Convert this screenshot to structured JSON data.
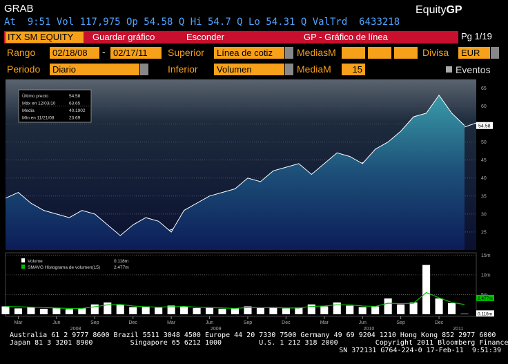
{
  "header": {
    "ticker": "GRAB",
    "brand": "Equity",
    "brand_bold": "GP",
    "quote": "At  9:51 Vol 117,975 Op 54.58 Q Hi 54.7 Q Lo 54.31 Q ValTrd  6433218"
  },
  "toolbar": {
    "security": "ITX SM EQUITY",
    "save": "Guardar gráfico",
    "hide": "Esconder",
    "title": "GP - Gráfico de línea",
    "page": "Pg 1/19"
  },
  "form": {
    "range_label": "Rango",
    "start": "02/18/08",
    "dash": "-",
    "end": "02/17/11",
    "upper_label": "Superior",
    "upper": "Línea de cotiz",
    "ma_upper_label": "MediasM",
    "currency_label": "Divisa",
    "currency": "EUR",
    "period_label": "Periodo",
    "period": "Diario",
    "lower_label": "Inferior",
    "lower": "Volumen",
    "ma_lower_label": "MediaM",
    "ma_lower": "15",
    "events": "Eventos"
  },
  "chart_data": [
    {
      "type": "area",
      "color": "#ffffff",
      "values": [
        34.4,
        36,
        33,
        31,
        30,
        29,
        31,
        30,
        27,
        24,
        27,
        29,
        28,
        25,
        31,
        33,
        35,
        36,
        37,
        40,
        39,
        42,
        43,
        44,
        41,
        44,
        47,
        46,
        44,
        48,
        50,
        53,
        57,
        58,
        63,
        58,
        54.58
      ],
      "ylim": [
        20,
        67
      ],
      "yticks": [
        25,
        30,
        35,
        40,
        45,
        50,
        55,
        60,
        65
      ],
      "grid": true,
      "last_label": "54.58",
      "legend": [
        {
          "label": "Último precio",
          "value": "54.58"
        },
        {
          "label": "Máx en 12/03/10",
          "value": "63.65"
        },
        {
          "label": "Media",
          "value": "40.1902"
        },
        {
          "label": "Mín en 11/21/08",
          "value": "23.69"
        }
      ]
    },
    {
      "type": "bar",
      "categories": [
        null,
        "Mar",
        null,
        null,
        "Jun",
        null,
        null,
        "Sep",
        null,
        null,
        "Dec",
        null,
        null,
        "Mar",
        null,
        null,
        "Jun",
        null,
        null,
        "Sep",
        null,
        null,
        "Dec",
        null,
        null,
        "Mar",
        null,
        null,
        "Jun",
        null,
        null,
        "Sep",
        null,
        null,
        "Dec",
        null,
        null
      ],
      "years": [
        "2008",
        "2009",
        "2010",
        "2011"
      ],
      "series": [
        {
          "name": "Volume",
          "color": "#ffffff",
          "legend_value": "0.118m",
          "values": [
            2,
            1.5,
            1.8,
            1.4,
            1.6,
            1.3,
            1.5,
            2.5,
            3,
            2.5,
            1.8,
            2,
            1.7,
            2.2,
            2,
            1.6,
            1.8,
            1.4,
            1.5,
            2,
            1.6,
            1.8,
            1.5,
            1.7,
            2.5,
            2,
            3,
            2.2,
            1.8,
            2,
            4,
            2.5,
            3,
            12.5,
            4,
            2.8,
            0.118
          ]
        },
        {
          "name": "SMAVG Histograma de volumen(15)",
          "color": "#00c000",
          "legend_value": "2.477m",
          "values": [
            2,
            1.9,
            1.8,
            1.7,
            1.6,
            1.5,
            1.5,
            1.9,
            2.4,
            2.5,
            2.1,
            1.9,
            1.8,
            1.9,
            2,
            1.8,
            1.7,
            1.6,
            1.5,
            1.7,
            1.7,
            1.7,
            1.6,
            1.6,
            2,
            2.1,
            2.4,
            2.4,
            2.1,
            2,
            2.8,
            2.7,
            2.8,
            5.5,
            4.2,
            3,
            2.477
          ]
        }
      ],
      "ylim": [
        0,
        15.5
      ],
      "yticks": [
        {
          "value": 5,
          "label": "5m"
        },
        {
          "value": 10,
          "label": "10m"
        },
        {
          "value": 15,
          "label": "15m"
        }
      ],
      "grid": true
    }
  ],
  "footer": [
    "Australia 61 2 9777 8600 Brazil 5511 3048 4500 Europe 44 20 7330 7500 Germany 49 69 9204 1210 Hong Kong 852 2977 6000",
    "Japan 81 3 3201 8900         Singapore 65 6212 1000         U.S. 1 212 318 2000         Copyright 2011 Bloomberg Finance L.P.",
    "SN 372131 G764-224-0 17-Feb-11  9:51:39"
  ]
}
